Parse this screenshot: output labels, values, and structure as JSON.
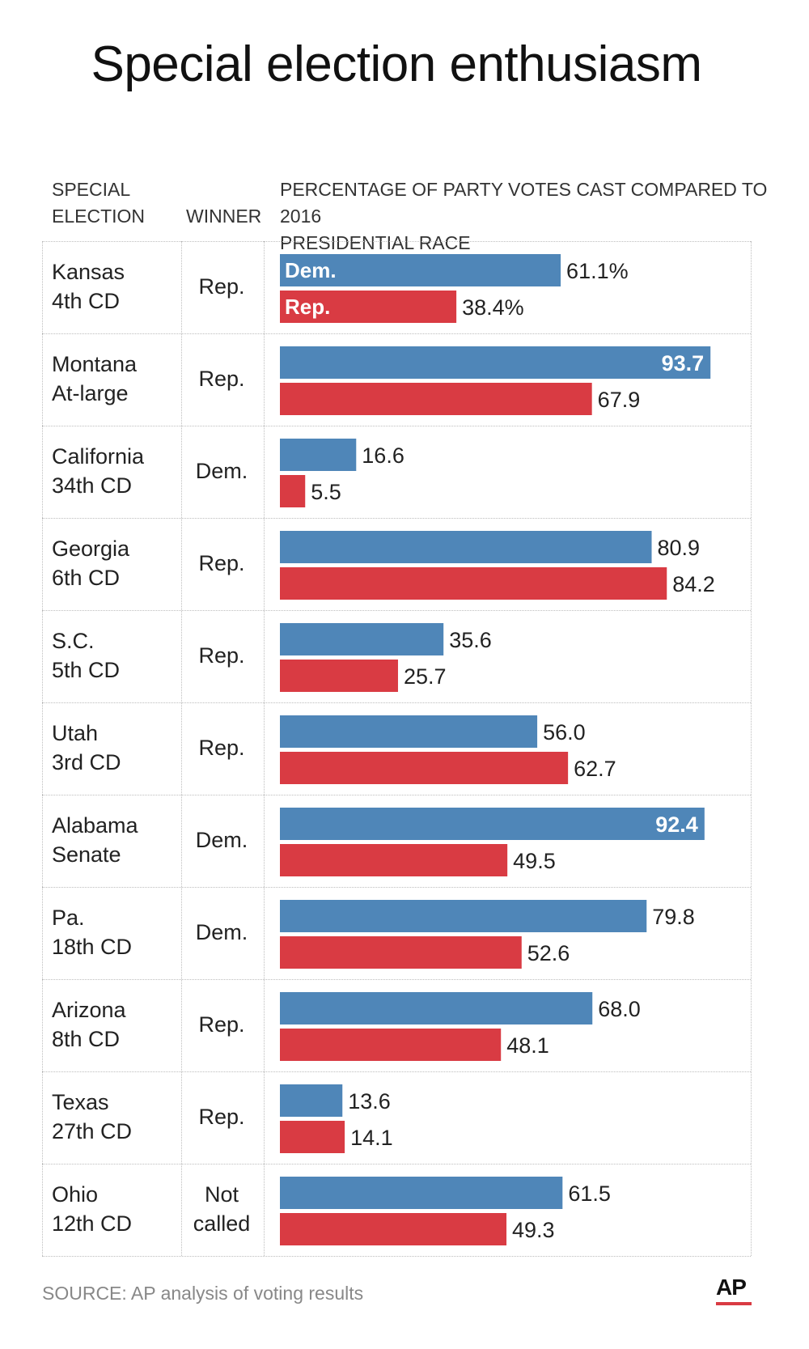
{
  "title": "Special election enthusiasm",
  "headers": {
    "election_line1": "SPECIAL",
    "election_line2": "ELECTION",
    "winner": "WINNER",
    "pct_line1": "PERCENTAGE OF PARTY VOTES CAST COMPARED TO 2016",
    "pct_line2": "PRESIDENTIAL RACE"
  },
  "rows": [
    {
      "label": "Kansas\n4th CD",
      "winner": "Rep."
    },
    {
      "label": "Montana\nAt-large",
      "winner": "Rep."
    },
    {
      "label": "California\n34th CD",
      "winner": "Dem."
    },
    {
      "label": "Georgia\n6th CD",
      "winner": "Rep."
    },
    {
      "label": "S.C.\n5th CD",
      "winner": "Rep."
    },
    {
      "label": "Utah\n3rd CD",
      "winner": "Rep."
    },
    {
      "label": "Alabama\nSenate",
      "winner": "Dem."
    },
    {
      "label": "Pa.\n18th CD",
      "winner": "Dem."
    },
    {
      "label": "Arizona\n8th CD",
      "winner": "Rep."
    },
    {
      "label": "Texas\n27th CD",
      "winner": "Rep."
    },
    {
      "label": "Ohio\n12th CD",
      "winner": "Not\ncalled"
    }
  ],
  "chart_data": {
    "type": "bar",
    "orientation": "horizontal",
    "title": "Special election enthusiasm",
    "categories": [
      "Kansas 4th CD",
      "Montana At-large",
      "California 34th CD",
      "Georgia 6th CD",
      "S.C. 5th CD",
      "Utah 3rd CD",
      "Alabama Senate",
      "Pa. 18th CD",
      "Arizona 8th CD",
      "Texas 27th CD",
      "Ohio 12th CD"
    ],
    "series": [
      {
        "name": "Dem.",
        "color": "#4f86b8",
        "values": [
          61.1,
          93.7,
          16.6,
          80.9,
          35.6,
          56.0,
          92.4,
          79.8,
          68.0,
          13.6,
          61.5
        ],
        "labels": [
          "61.1%",
          "93.7",
          "16.6",
          "80.9",
          "35.6",
          "56.0",
          "92.4",
          "79.8",
          "68.0",
          "13.6",
          "61.5"
        ]
      },
      {
        "name": "Rep.",
        "color": "#d93b43",
        "values": [
          38.4,
          67.9,
          5.5,
          84.2,
          25.7,
          62.7,
          49.5,
          52.6,
          48.1,
          14.1,
          49.3
        ],
        "labels": [
          "38.4%",
          "67.9",
          "5.5",
          "84.2",
          "25.7",
          "62.7",
          "49.5",
          "52.6",
          "48.1",
          "14.1",
          "49.3"
        ]
      }
    ],
    "xlim": [
      0,
      100
    ],
    "grid": false,
    "legend": "none"
  },
  "source": "SOURCE: AP analysis of voting results",
  "logo_text": "AP"
}
